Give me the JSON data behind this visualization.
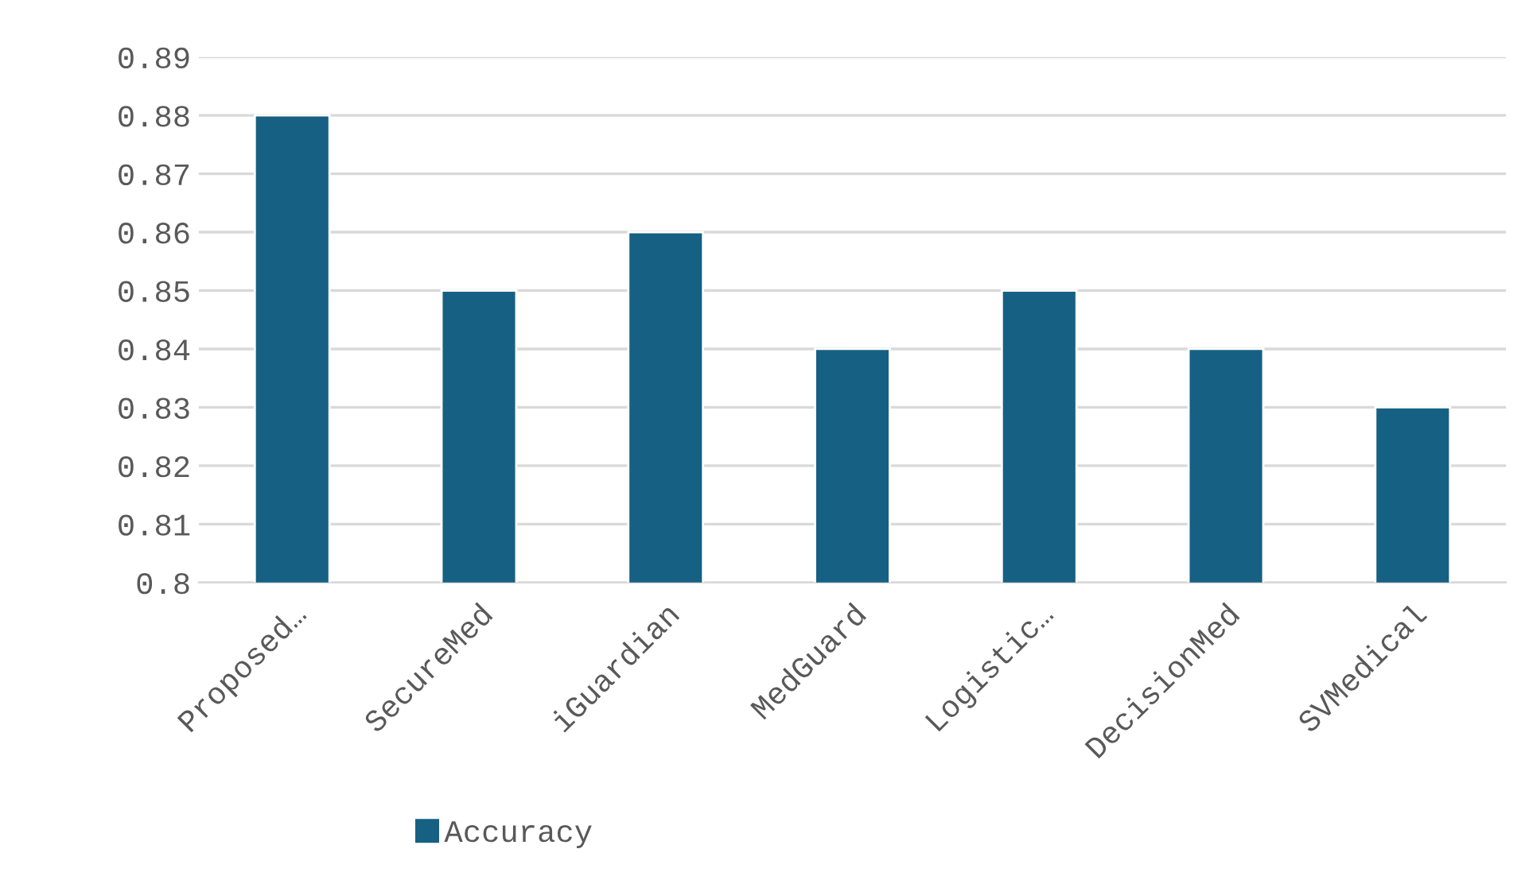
{
  "chart_data": {
    "type": "bar",
    "categories": [
      "Proposed…",
      "SecureMed",
      "iGuardian",
      "MedGuard",
      "Logistic…",
      "DecisionMed",
      "SVMedical"
    ],
    "series": [
      {
        "name": "Accuracy",
        "color": "#166083",
        "values": [
          0.88,
          0.85,
          0.86,
          0.84,
          0.85,
          0.84,
          0.83
        ]
      }
    ],
    "ylim": [
      0.8,
      0.89
    ],
    "yticks": [
      0.8,
      0.81,
      0.82,
      0.83,
      0.84,
      0.85,
      0.86,
      0.87,
      0.88,
      0.89
    ],
    "grid": "y",
    "legend": "bottom"
  }
}
